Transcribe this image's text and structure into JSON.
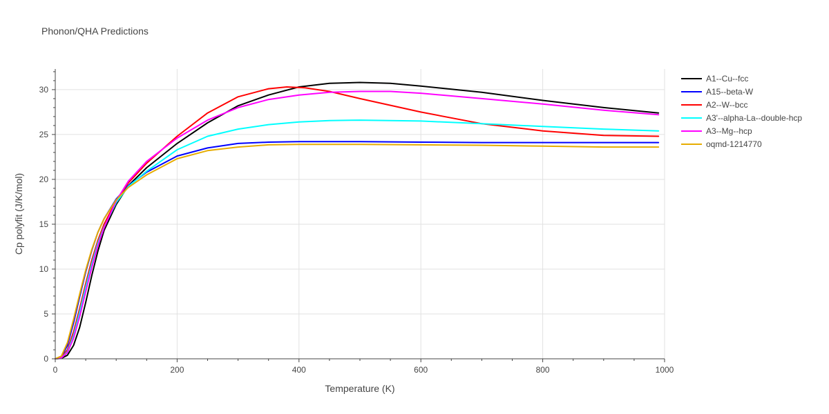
{
  "chart_data": {
    "type": "line",
    "title": "Phonon/QHA Predictions",
    "xlabel": "Temperature (K)",
    "ylabel": "Cp polyfit (J/K/mol)",
    "xlim": [
      0,
      1000
    ],
    "ylim": [
      0,
      32.3
    ],
    "x_ticks": [
      0,
      200,
      400,
      600,
      800,
      1000
    ],
    "y_ticks": [
      0,
      5,
      10,
      15,
      20,
      25,
      30
    ],
    "grid": true,
    "legend_position": "top-right",
    "series": [
      {
        "name": "A1--Cu--fcc",
        "color": "#000000",
        "points": [
          [
            0,
            0
          ],
          [
            10,
            0.05
          ],
          [
            20,
            0.4
          ],
          [
            30,
            1.5
          ],
          [
            40,
            3.5
          ],
          [
            50,
            6.3
          ],
          [
            60,
            9.3
          ],
          [
            70,
            12.0
          ],
          [
            80,
            14.3
          ],
          [
            100,
            17.2
          ],
          [
            120,
            19.3
          ],
          [
            150,
            21.3
          ],
          [
            200,
            24.0
          ],
          [
            250,
            26.3
          ],
          [
            300,
            28.2
          ],
          [
            350,
            29.4
          ],
          [
            400,
            30.3
          ],
          [
            450,
            30.7
          ],
          [
            500,
            30.8
          ],
          [
            550,
            30.7
          ],
          [
            600,
            30.4
          ],
          [
            700,
            29.7
          ],
          [
            800,
            28.8
          ],
          [
            900,
            28.0
          ],
          [
            990,
            27.4
          ]
        ]
      },
      {
        "name": "A15--beta-W",
        "color": "#0000ff",
        "points": [
          [
            0,
            0
          ],
          [
            10,
            0.2
          ],
          [
            20,
            1.5
          ],
          [
            30,
            4.0
          ],
          [
            40,
            6.9
          ],
          [
            50,
            9.7
          ],
          [
            60,
            12.1
          ],
          [
            70,
            14.1
          ],
          [
            80,
            15.6
          ],
          [
            100,
            17.8
          ],
          [
            120,
            19.3
          ],
          [
            150,
            20.8
          ],
          [
            200,
            22.6
          ],
          [
            250,
            23.5
          ],
          [
            300,
            24.0
          ],
          [
            350,
            24.15
          ],
          [
            400,
            24.2
          ],
          [
            500,
            24.2
          ],
          [
            600,
            24.15
          ],
          [
            700,
            24.1
          ],
          [
            800,
            24.1
          ],
          [
            900,
            24.1
          ],
          [
            990,
            24.1
          ]
        ]
      },
      {
        "name": "A2--W--bcc",
        "color": "#ff0000",
        "points": [
          [
            0,
            0
          ],
          [
            10,
            0.15
          ],
          [
            20,
            1.0
          ],
          [
            30,
            3.0
          ],
          [
            40,
            5.6
          ],
          [
            50,
            8.4
          ],
          [
            60,
            11.0
          ],
          [
            70,
            13.2
          ],
          [
            80,
            15.0
          ],
          [
            100,
            17.6
          ],
          [
            120,
            19.6
          ],
          [
            150,
            21.8
          ],
          [
            200,
            24.8
          ],
          [
            250,
            27.4
          ],
          [
            300,
            29.2
          ],
          [
            350,
            30.1
          ],
          [
            380,
            30.3
          ],
          [
            410,
            30.2
          ],
          [
            450,
            29.8
          ],
          [
            500,
            29.0
          ],
          [
            600,
            27.5
          ],
          [
            700,
            26.2
          ],
          [
            800,
            25.4
          ],
          [
            900,
            24.9
          ],
          [
            990,
            24.8
          ]
        ]
      },
      {
        "name": "A3'--alpha-La--double-hcp",
        "color": "#00ffff",
        "points": [
          [
            0,
            0
          ],
          [
            10,
            0.1
          ],
          [
            20,
            0.8
          ],
          [
            30,
            2.6
          ],
          [
            40,
            5.2
          ],
          [
            50,
            8.0
          ],
          [
            60,
            10.6
          ],
          [
            70,
            12.9
          ],
          [
            80,
            14.7
          ],
          [
            100,
            17.4
          ],
          [
            120,
            19.2
          ],
          [
            150,
            20.9
          ],
          [
            200,
            23.3
          ],
          [
            250,
            24.8
          ],
          [
            300,
            25.6
          ],
          [
            350,
            26.1
          ],
          [
            400,
            26.4
          ],
          [
            450,
            26.55
          ],
          [
            500,
            26.6
          ],
          [
            600,
            26.5
          ],
          [
            700,
            26.2
          ],
          [
            800,
            25.9
          ],
          [
            900,
            25.6
          ],
          [
            990,
            25.4
          ]
        ]
      },
      {
        "name": "A3--Mg--hcp",
        "color": "#ff00ff",
        "points": [
          [
            0,
            0
          ],
          [
            10,
            0.1
          ],
          [
            20,
            0.7
          ],
          [
            30,
            2.3
          ],
          [
            40,
            4.7
          ],
          [
            50,
            7.5
          ],
          [
            60,
            10.2
          ],
          [
            70,
            12.6
          ],
          [
            80,
            14.6
          ],
          [
            100,
            17.6
          ],
          [
            120,
            19.8
          ],
          [
            150,
            22.0
          ],
          [
            200,
            24.6
          ],
          [
            250,
            26.6
          ],
          [
            300,
            28.0
          ],
          [
            350,
            28.9
          ],
          [
            400,
            29.4
          ],
          [
            450,
            29.7
          ],
          [
            500,
            29.8
          ],
          [
            550,
            29.8
          ],
          [
            600,
            29.6
          ],
          [
            700,
            29.0
          ],
          [
            800,
            28.4
          ],
          [
            900,
            27.7
          ],
          [
            990,
            27.2
          ]
        ]
      },
      {
        "name": "oqmd-1214770",
        "color": "#e6ac00",
        "points": [
          [
            0,
            0
          ],
          [
            10,
            0.3
          ],
          [
            20,
            1.8
          ],
          [
            30,
            4.4
          ],
          [
            40,
            7.2
          ],
          [
            50,
            9.9
          ],
          [
            60,
            12.2
          ],
          [
            70,
            14.1
          ],
          [
            80,
            15.6
          ],
          [
            100,
            17.7
          ],
          [
            120,
            19.1
          ],
          [
            150,
            20.5
          ],
          [
            200,
            22.3
          ],
          [
            250,
            23.2
          ],
          [
            300,
            23.6
          ],
          [
            350,
            23.85
          ],
          [
            400,
            23.9
          ],
          [
            500,
            23.9
          ],
          [
            600,
            23.85
          ],
          [
            700,
            23.8
          ],
          [
            800,
            23.7
          ],
          [
            900,
            23.6
          ],
          [
            990,
            23.6
          ]
        ]
      }
    ]
  }
}
